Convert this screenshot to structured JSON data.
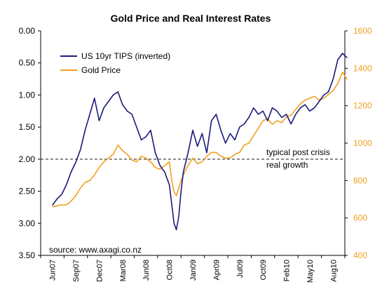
{
  "chart_data": {
    "type": "line",
    "title": "Gold Price and Real Interest Rates",
    "left_axis": {
      "min": 0.0,
      "max": 3.5,
      "inverted": true,
      "ticks": [
        "0.00",
        "0.50",
        "1.00",
        "1.50",
        "2.00",
        "2.50",
        "3.00",
        "3.50"
      ],
      "tick_values": [
        0,
        0.5,
        1.0,
        1.5,
        2.0,
        2.5,
        3.0,
        3.5
      ]
    },
    "right_axis": {
      "min": 400,
      "max": 1600,
      "ticks": [
        "1600",
        "1400",
        "1200",
        "1000",
        "800",
        "600",
        "400"
      ],
      "tick_values": [
        1600,
        1400,
        1200,
        1000,
        800,
        600,
        400
      ],
      "color": "#f0a020"
    },
    "x_axis": {
      "categories": [
        "Jun07",
        "Sep07",
        "Dec07",
        "Mar08",
        "Jun08",
        "Oct08",
        "Jan09",
        "Apr09",
        "Jul09",
        "Oct09",
        "Feb10",
        "May10",
        "Aug10"
      ]
    },
    "series": [
      {
        "name": "US 10yr TIPS (inverted)",
        "axis": "left",
        "color": "#1a1a7a",
        "x": [
          0,
          0.2,
          0.4,
          0.6,
          0.8,
          1.0,
          1.2,
          1.4,
          1.6,
          1.8,
          2.0,
          2.2,
          2.4,
          2.6,
          2.8,
          3.0,
          3.2,
          3.4,
          3.6,
          3.8,
          4.0,
          4.2,
          4.4,
          4.6,
          4.8,
          5.0,
          5.1,
          5.2,
          5.3,
          5.4,
          5.5,
          5.6,
          5.8,
          6.0,
          6.2,
          6.4,
          6.6,
          6.8,
          7.0,
          7.2,
          7.4,
          7.6,
          7.8,
          8.0,
          8.2,
          8.4,
          8.6,
          8.8,
          9.0,
          9.2,
          9.4,
          9.6,
          9.8,
          10.0,
          10.2,
          10.4,
          10.6,
          10.8,
          11.0,
          11.2,
          11.4,
          11.6,
          11.8,
          12.0,
          12.2,
          12.4,
          12.6
        ],
        "values": [
          2.72,
          2.62,
          2.55,
          2.4,
          2.2,
          2.05,
          1.85,
          1.55,
          1.3,
          1.05,
          1.4,
          1.2,
          1.1,
          1.0,
          0.95,
          1.15,
          1.25,
          1.3,
          1.5,
          1.7,
          1.65,
          1.55,
          1.9,
          2.1,
          2.2,
          2.4,
          2.7,
          3.0,
          3.1,
          2.9,
          2.5,
          2.2,
          1.9,
          1.55,
          1.8,
          1.6,
          1.9,
          1.4,
          1.3,
          1.55,
          1.75,
          1.6,
          1.7,
          1.5,
          1.45,
          1.35,
          1.2,
          1.3,
          1.25,
          1.4,
          1.2,
          1.25,
          1.35,
          1.3,
          1.45,
          1.3,
          1.2,
          1.15,
          1.25,
          1.2,
          1.1,
          1.0,
          0.95,
          0.75,
          0.45,
          0.35,
          0.42
        ]
      },
      {
        "name": "Gold Price",
        "axis": "right",
        "color": "#f0a020",
        "x": [
          0,
          0.2,
          0.4,
          0.6,
          0.8,
          1.0,
          1.2,
          1.4,
          1.6,
          1.8,
          2.0,
          2.2,
          2.4,
          2.6,
          2.8,
          3.0,
          3.2,
          3.4,
          3.6,
          3.8,
          4.0,
          4.2,
          4.4,
          4.6,
          4.8,
          5.0,
          5.1,
          5.2,
          5.3,
          5.4,
          5.5,
          5.6,
          5.8,
          6.0,
          6.2,
          6.4,
          6.6,
          6.8,
          7.0,
          7.2,
          7.4,
          7.6,
          7.8,
          8.0,
          8.2,
          8.4,
          8.6,
          8.8,
          9.0,
          9.2,
          9.4,
          9.6,
          9.8,
          10.0,
          10.2,
          10.4,
          10.6,
          10.8,
          11.0,
          11.2,
          11.4,
          11.6,
          11.8,
          12.0,
          12.2,
          12.4,
          12.6
        ],
        "values": [
          660,
          665,
          670,
          670,
          690,
          720,
          760,
          790,
          800,
          830,
          870,
          900,
          920,
          940,
          990,
          960,
          940,
          910,
          900,
          930,
          920,
          900,
          870,
          860,
          880,
          900,
          800,
          740,
          720,
          760,
          800,
          830,
          880,
          920,
          890,
          900,
          930,
          950,
          950,
          930,
          920,
          920,
          940,
          950,
          990,
          1000,
          1040,
          1080,
          1120,
          1130,
          1100,
          1120,
          1110,
          1140,
          1150,
          1180,
          1210,
          1230,
          1240,
          1250,
          1230,
          1240,
          1260,
          1280,
          1320,
          1380,
          1340
        ]
      }
    ],
    "reference_line": {
      "axis": "left",
      "value": 2.0,
      "style": "dashed",
      "label_lines": [
        "typical post crisis",
        "real growth"
      ]
    },
    "annotation": "source: www.axagi.co.nz",
    "legend": {
      "placement": "top-left"
    },
    "grid": false
  }
}
